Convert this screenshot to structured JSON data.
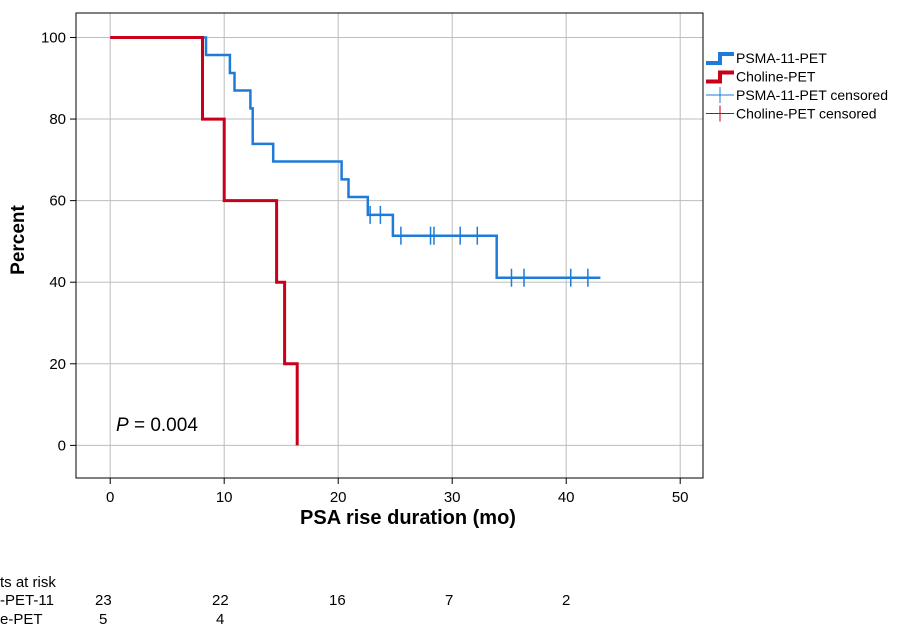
{
  "chart_data": {
    "type": "kaplan-meier step line",
    "xlabel": "PSA rise duration (mo)",
    "ylabel": "Percent",
    "xlim": [
      -3,
      52
    ],
    "ylim": [
      -8,
      106
    ],
    "x_ticks": [
      0,
      10,
      20,
      30,
      40,
      50
    ],
    "y_ticks": [
      0,
      20,
      40,
      60,
      80,
      100
    ],
    "grid": true,
    "legend_position": "right, outside plot, top",
    "annotation": {
      "italic": "P",
      "text": " = 0.004"
    },
    "series": [
      {
        "name": "PSMA-11-PET",
        "color": "#1f7bd8",
        "points": [
          [
            0,
            100
          ],
          [
            8.4,
            100
          ],
          [
            8.4,
            95.7
          ],
          [
            10.5,
            95.7
          ],
          [
            10.5,
            91.3
          ],
          [
            10.9,
            91.3
          ],
          [
            10.9,
            87
          ],
          [
            12.3,
            87
          ],
          [
            12.3,
            82.6
          ],
          [
            12.5,
            82.6
          ],
          [
            12.5,
            73.9
          ],
          [
            14.3,
            73.9
          ],
          [
            14.3,
            69.6
          ],
          [
            20.3,
            69.6
          ],
          [
            20.3,
            65.2
          ],
          [
            20.9,
            65.2
          ],
          [
            20.9,
            60.9
          ],
          [
            22.6,
            60.9
          ],
          [
            22.6,
            56.5
          ],
          [
            24.8,
            56.5
          ],
          [
            24.8,
            51.4
          ],
          [
            33.9,
            51.4
          ],
          [
            33.9,
            41.1
          ],
          [
            43,
            41.1
          ]
        ],
        "censored": [
          [
            22.8,
            56.5
          ],
          [
            23.7,
            56.5
          ],
          [
            25.5,
            51.4
          ],
          [
            28.1,
            51.4
          ],
          [
            28.4,
            51.4
          ],
          [
            30.7,
            51.4
          ],
          [
            32.2,
            51.4
          ],
          [
            35.2,
            41.1
          ],
          [
            36.3,
            41.1
          ],
          [
            40.4,
            41.1
          ],
          [
            41.9,
            41.1
          ]
        ]
      },
      {
        "name": "Choline-PET",
        "color": "#c8001a",
        "points": [
          [
            0,
            100
          ],
          [
            8.1,
            100
          ],
          [
            8.1,
            80
          ],
          [
            10,
            80
          ],
          [
            10,
            60
          ],
          [
            14.6,
            60
          ],
          [
            14.6,
            40
          ],
          [
            15.3,
            40
          ],
          [
            15.3,
            20
          ],
          [
            16.4,
            20
          ],
          [
            16.4,
            0
          ]
        ],
        "censored": []
      }
    ],
    "legend": [
      {
        "label": "PSMA-11-PET",
        "color": "#1f7bd8",
        "style": "step-thick"
      },
      {
        "label": "Choline-PET",
        "color": "#c8001a",
        "style": "step-thick"
      },
      {
        "label": "PSMA-11-PET censored",
        "color": "#1f7bd8",
        "style": "censor"
      },
      {
        "label": "Choline-PET censored",
        "color": "#c8001a",
        "style": "censor"
      }
    ]
  },
  "risk_table": {
    "title": "ts at risk",
    "rows": [
      {
        "label": "-PET-11",
        "values": [
          "23",
          "22",
          "16",
          "7",
          "2"
        ]
      },
      {
        "label": "e-PET",
        "values": [
          "5",
          "4"
        ]
      }
    ]
  }
}
